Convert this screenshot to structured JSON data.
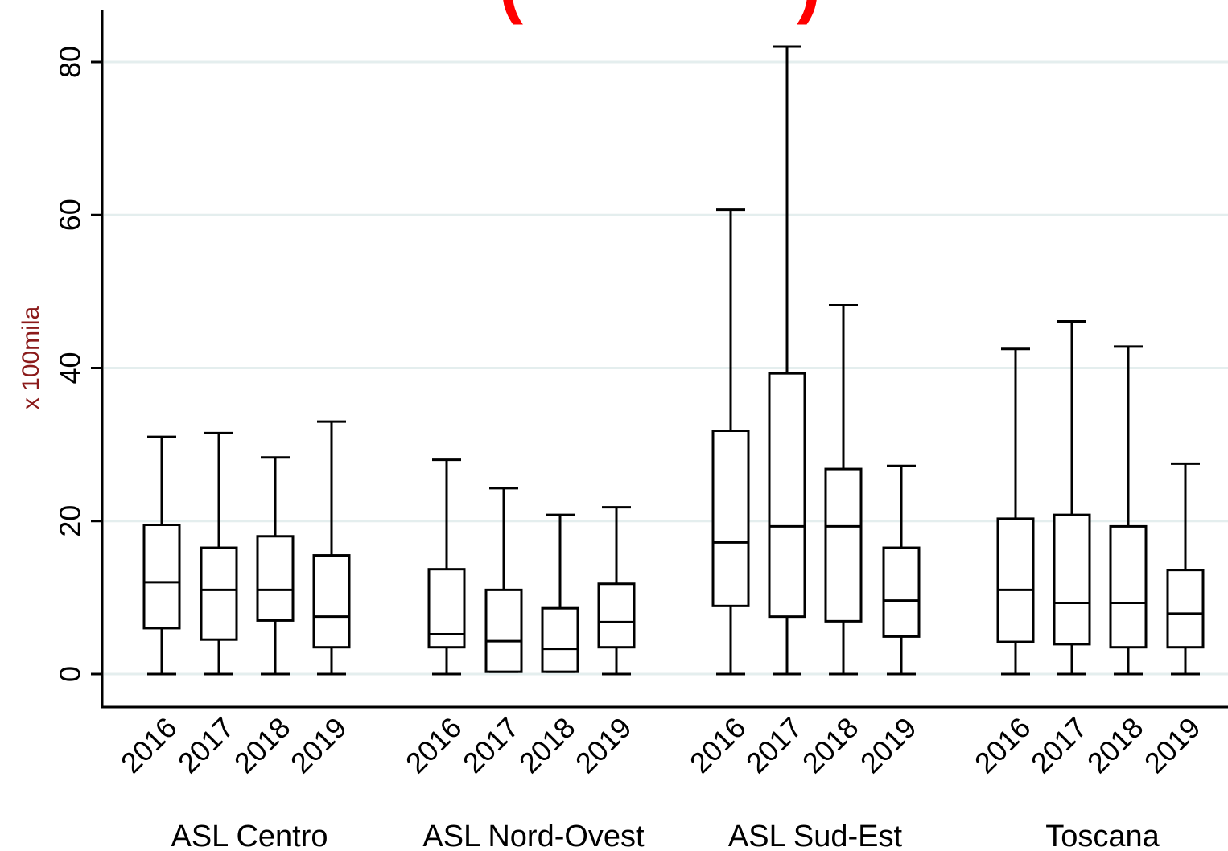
{
  "title_fragment": {
    "left": "(",
    "right": ")",
    "color": "#ff0000"
  },
  "chart_data": {
    "type": "box",
    "ylabel": "x 100mila",
    "ylim": [
      -4,
      86
    ],
    "yticks": [
      0,
      20,
      40,
      60,
      80
    ],
    "grid": true,
    "grid_color": "#e4eeee",
    "groups": [
      {
        "name": "ASL Centro",
        "boxes": [
          {
            "year": "2016",
            "min": 0,
            "q1": 6,
            "median": 12,
            "q3": 19.5,
            "max": 31
          },
          {
            "year": "2017",
            "min": 0,
            "q1": 4.5,
            "median": 11,
            "q3": 16.5,
            "max": 31.5
          },
          {
            "year": "2018",
            "min": 0,
            "q1": 7,
            "median": 11,
            "q3": 18,
            "max": 28.3
          },
          {
            "year": "2019",
            "min": 0,
            "q1": 3.5,
            "median": 7.5,
            "q3": 15.5,
            "max": 33
          }
        ]
      },
      {
        "name": "ASL Nord-Ovest",
        "boxes": [
          {
            "year": "2016",
            "min": 0,
            "q1": 3.5,
            "median": 5.2,
            "q3": 13.7,
            "max": 28
          },
          {
            "year": "2017",
            "min": 0.3,
            "q1": 0.3,
            "median": 4.3,
            "q3": 11,
            "max": 24.3
          },
          {
            "year": "2018",
            "min": 0.3,
            "q1": 0.3,
            "median": 3.3,
            "q3": 8.6,
            "max": 20.8
          },
          {
            "year": "2019",
            "min": 0,
            "q1": 3.5,
            "median": 6.8,
            "q3": 11.8,
            "max": 21.8
          }
        ]
      },
      {
        "name": "ASL Sud-Est",
        "boxes": [
          {
            "year": "2016",
            "min": 0,
            "q1": 8.9,
            "median": 17.2,
            "q3": 31.8,
            "max": 60.7
          },
          {
            "year": "2017",
            "min": 0,
            "q1": 7.5,
            "median": 19.3,
            "q3": 39.3,
            "max": 82
          },
          {
            "year": "2018",
            "min": 0,
            "q1": 6.9,
            "median": 19.3,
            "q3": 26.8,
            "max": 48.2
          },
          {
            "year": "2019",
            "min": 0,
            "q1": 4.9,
            "median": 9.6,
            "q3": 16.5,
            "max": 27.2
          }
        ]
      },
      {
        "name": "Toscana",
        "boxes": [
          {
            "year": "2016",
            "min": 0,
            "q1": 4.2,
            "median": 11,
            "q3": 20.3,
            "max": 42.5
          },
          {
            "year": "2017",
            "min": 0,
            "q1": 3.9,
            "median": 9.3,
            "q3": 20.8,
            "max": 46.1
          },
          {
            "year": "2018",
            "min": 0,
            "q1": 3.5,
            "median": 9.3,
            "q3": 19.3,
            "max": 42.8
          },
          {
            "year": "2019",
            "min": 0,
            "q1": 3.5,
            "median": 7.9,
            "q3": 13.6,
            "max": 27.5
          }
        ]
      }
    ]
  }
}
